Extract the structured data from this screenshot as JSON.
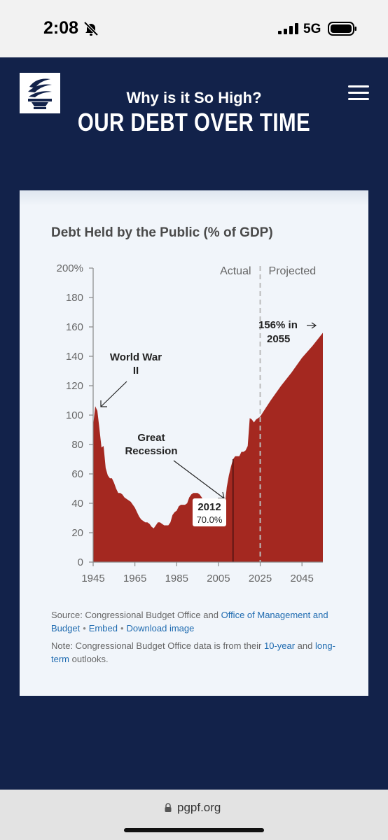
{
  "status_bar": {
    "time": "2:08",
    "network": "5G"
  },
  "header": {
    "subtitle": "Why is it So High?",
    "title": "OUR DEBT OVER TIME"
  },
  "chart": {
    "title": "Debt Held by the Public (% of GDP)",
    "section_actual": "Actual",
    "section_projected": "Projected",
    "annotations": {
      "wwii_1": "World War",
      "wwii_2": "II",
      "recession_1": "Great",
      "recession_2": "Recession",
      "year_2012": "2012",
      "value_2012": "70.0%",
      "proj_1": "156% in",
      "proj_2": "2055"
    }
  },
  "chart_data": {
    "type": "area",
    "title": "Debt Held by the Public (% of GDP)",
    "xlabel": "",
    "ylabel": "",
    "ylim": [
      0,
      200
    ],
    "xlim": [
      1945,
      2055
    ],
    "y_ticks": [
      "0",
      "20",
      "40",
      "60",
      "80",
      "100",
      "120",
      "140",
      "160",
      "180",
      "200%"
    ],
    "x_ticks": [
      "1945",
      "1965",
      "1985",
      "2005",
      "2025",
      "2045"
    ],
    "actual_projected_divider_year": 2025,
    "fill_color": "#a42820",
    "x": [
      1945,
      1946,
      1947,
      1948,
      1949,
      1950,
      1951,
      1952,
      1953,
      1954,
      1955,
      1956,
      1957,
      1958,
      1959,
      1960,
      1961,
      1962,
      1963,
      1964,
      1965,
      1966,
      1967,
      1968,
      1969,
      1970,
      1971,
      1972,
      1973,
      1974,
      1975,
      1976,
      1977,
      1978,
      1979,
      1980,
      1981,
      1982,
      1983,
      1984,
      1985,
      1986,
      1987,
      1988,
      1989,
      1990,
      1991,
      1992,
      1993,
      1994,
      1995,
      1996,
      1997,
      1998,
      1999,
      2000,
      2001,
      2002,
      2003,
      2004,
      2005,
      2006,
      2007,
      2008,
      2009,
      2010,
      2011,
      2012,
      2013,
      2014,
      2015,
      2016,
      2017,
      2018,
      2019,
      2020,
      2021,
      2022,
      2023,
      2024,
      2025,
      2030,
      2035,
      2040,
      2045,
      2050,
      2055
    ],
    "values": [
      93,
      106,
      103,
      91,
      78,
      79,
      64,
      59,
      57,
      57,
      54,
      50,
      47,
      47,
      46,
      44,
      43,
      42,
      41,
      39,
      37,
      34,
      31,
      29,
      28,
      27,
      27,
      26,
      24,
      23,
      25,
      27,
      27,
      26,
      25,
      25,
      25,
      27,
      32,
      34,
      35,
      38,
      39,
      39,
      39,
      40,
      44,
      46,
      47,
      47,
      47,
      46,
      44,
      42,
      40,
      35,
      31,
      31,
      33,
      34,
      34,
      34,
      33,
      38,
      51,
      59,
      65,
      70,
      72,
      72,
      72,
      75,
      75,
      76,
      79,
      98,
      97,
      95,
      97,
      98,
      99,
      110,
      120,
      129,
      139,
      147,
      156
    ]
  },
  "source": {
    "prefix": "Source: Congressional Budget Office and ",
    "omb_link": "Office of Management and Budget",
    "embed": "Embed",
    "download": "Download image"
  },
  "note": {
    "prefix": "Note: Congressional Budget Office data is from their ",
    "link_10yr": "10-year",
    "middle": " and ",
    "link_longterm": "long-term",
    "suffix": " outlooks."
  },
  "browser": {
    "url": "pgpf.org"
  }
}
